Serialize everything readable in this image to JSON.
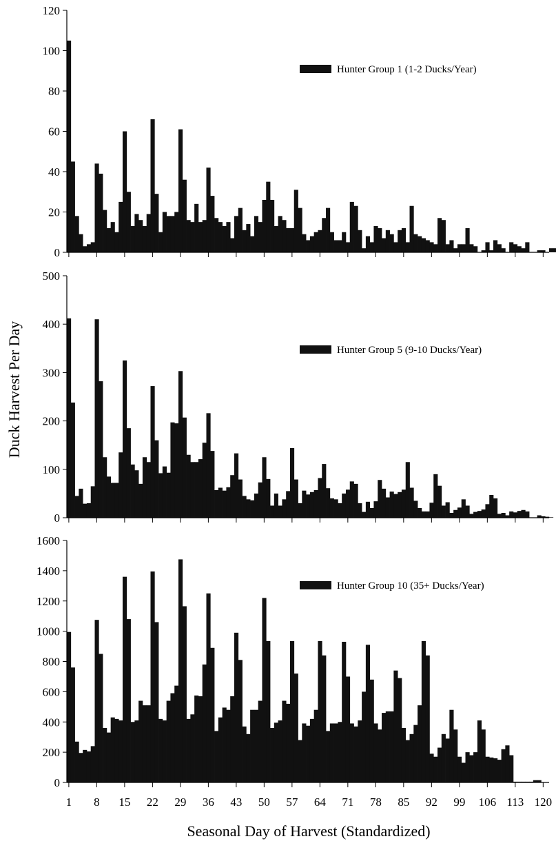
{
  "figure": {
    "ylabel": "Duck Harvest Per Day",
    "xlabel": "Seasonal Day of Harvest (Standardized)",
    "x_tick_labels": [
      "1",
      "8",
      "15",
      "22",
      "29",
      "36",
      "43",
      "50",
      "57",
      "64",
      "71",
      "78",
      "85",
      "92",
      "99",
      "106",
      "113",
      "120"
    ]
  },
  "colors": {
    "bar": "#111111",
    "axis": "#000000",
    "background": "#ffffff"
  },
  "chart_data": [
    {
      "type": "bar",
      "legend": "Hunter Group 1 (1-2 Ducks/Year)",
      "legend_position": "top-right",
      "ylim": [
        0,
        120
      ],
      "y_ticks": [
        "0",
        "20",
        "40",
        "60",
        "80",
        "100",
        "120"
      ],
      "x_start": 1,
      "values": [
        105,
        45,
        18,
        9,
        3,
        4,
        5,
        44,
        39,
        21,
        12,
        15,
        10,
        25,
        60,
        30,
        13,
        19,
        16,
        13,
        19,
        66,
        29,
        10,
        20,
        18,
        18,
        20,
        61,
        36,
        16,
        15,
        24,
        15,
        16,
        42,
        28,
        17,
        15,
        13,
        15,
        7,
        18,
        22,
        11,
        14,
        8,
        18,
        15,
        26,
        35,
        26,
        13,
        18,
        16,
        12,
        12,
        31,
        22,
        9,
        6,
        8,
        10,
        11,
        17,
        22,
        10,
        6,
        6,
        10,
        5,
        25,
        23,
        11,
        2,
        8,
        5,
        13,
        12,
        7,
        11,
        9,
        5,
        11,
        12,
        5,
        23,
        9,
        8,
        7,
        6,
        5,
        4,
        17,
        16,
        4,
        6,
        2,
        4,
        4,
        12,
        4,
        3,
        0,
        1,
        5,
        1,
        6,
        4,
        2,
        0,
        5,
        4,
        3,
        2,
        5,
        0,
        0,
        1,
        1,
        0,
        2,
        2
      ]
    },
    {
      "type": "bar",
      "legend": "Hunter Group 5 (9-10 Ducks/Year)",
      "legend_position": "top-right",
      "ylim": [
        0,
        500
      ],
      "y_ticks": [
        "0",
        "100",
        "200",
        "300",
        "400",
        "500"
      ],
      "x_start": 1,
      "values": [
        412,
        238,
        45,
        60,
        29,
        30,
        65,
        410,
        282,
        125,
        85,
        72,
        72,
        135,
        325,
        185,
        110,
        98,
        70,
        125,
        115,
        272,
        160,
        92,
        106,
        93,
        197,
        195,
        303,
        207,
        130,
        115,
        115,
        121,
        155,
        216,
        138,
        57,
        62,
        56,
        63,
        88,
        133,
        79,
        45,
        38,
        36,
        50,
        73,
        125,
        80,
        25,
        50,
        25,
        38,
        55,
        144,
        79,
        30,
        56,
        48,
        53,
        57,
        82,
        111,
        61,
        40,
        38,
        30,
        50,
        58,
        75,
        70,
        30,
        12,
        33,
        20,
        34,
        78,
        60,
        42,
        54,
        49,
        53,
        58,
        115,
        62,
        35,
        20,
        13,
        13,
        31,
        90,
        66,
        25,
        32,
        10,
        16,
        21,
        38,
        25,
        8,
        12,
        14,
        17,
        28,
        47,
        40,
        8,
        10,
        5,
        13,
        11,
        14,
        16,
        13,
        0,
        0,
        5,
        3,
        2,
        1
      ]
    },
    {
      "type": "bar",
      "legend": "Hunter Group 10 (35+ Ducks/Year)",
      "legend_position": "top-right",
      "ylim": [
        0,
        1600
      ],
      "y_ticks": [
        "0",
        "200",
        "400",
        "600",
        "800",
        "1000",
        "1200",
        "1400",
        "1600"
      ],
      "x_start": 1,
      "values": [
        995,
        760,
        270,
        195,
        215,
        205,
        240,
        1075,
        850,
        360,
        330,
        430,
        420,
        410,
        1360,
        1080,
        400,
        410,
        540,
        510,
        510,
        1395,
        1060,
        420,
        410,
        540,
        590,
        640,
        1475,
        1165,
        420,
        450,
        575,
        570,
        780,
        1250,
        890,
        340,
        430,
        495,
        480,
        570,
        990,
        810,
        370,
        320,
        480,
        480,
        540,
        1220,
        935,
        360,
        395,
        410,
        540,
        520,
        935,
        720,
        280,
        390,
        375,
        420,
        480,
        935,
        840,
        340,
        390,
        390,
        400,
        930,
        700,
        390,
        370,
        410,
        600,
        910,
        680,
        390,
        350,
        460,
        470,
        470,
        740,
        690,
        360,
        280,
        320,
        380,
        510,
        935,
        840,
        190,
        170,
        230,
        320,
        290,
        480,
        350,
        170,
        130,
        200,
        180,
        200,
        410,
        350,
        170,
        165,
        160,
        150,
        220,
        245,
        180,
        5,
        5,
        5,
        5,
        5,
        15,
        15
      ]
    }
  ]
}
